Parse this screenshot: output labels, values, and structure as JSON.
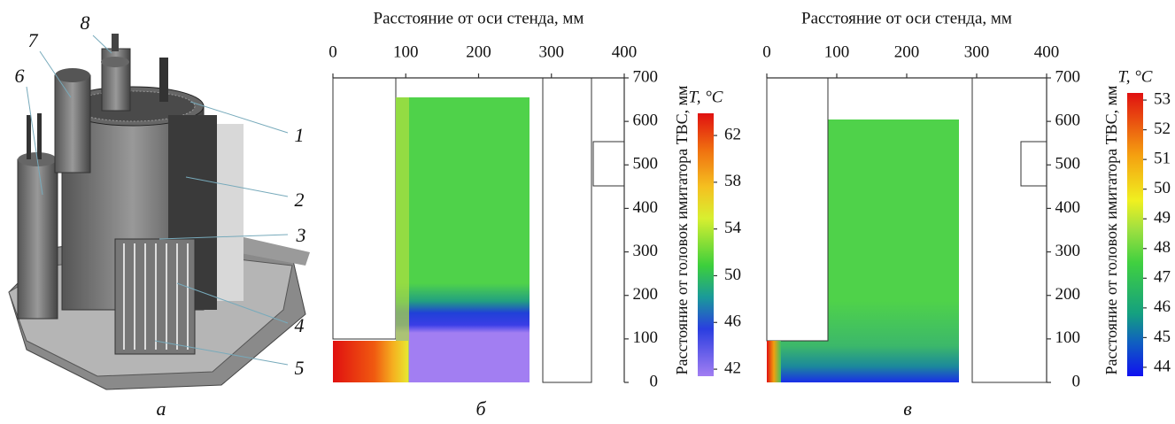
{
  "panel_a": {
    "label": "а",
    "callouts": [
      "1",
      "2",
      "3",
      "4",
      "5",
      "6",
      "7",
      "8"
    ]
  },
  "panel_b": {
    "label": "б",
    "x_axis_label": "Расстояние от оси стенда, мм",
    "y_axis_label": "Расстояние от головок имитатора ТВС, мм",
    "xlim": [
      0,
      400
    ],
    "xticks": [
      0,
      100,
      200,
      300,
      400
    ],
    "ylim": [
      0,
      700
    ],
    "yticks": [
      0,
      100,
      200,
      300,
      400,
      500,
      600,
      700
    ],
    "colorbar_title": "T, °C",
    "colorbar_lim": [
      41.4,
      63.9
    ],
    "colorbar_ticks": [
      42,
      46,
      50,
      54,
      58,
      62
    ]
  },
  "panel_c": {
    "label": "в",
    "x_axis_label": "Расстояние от оси стенда, мм",
    "y_axis_label": "Расстояние от головок имитатора ТВС, мм",
    "xlim": [
      0,
      400
    ],
    "xticks": [
      0,
      100,
      200,
      300,
      400
    ],
    "ylim": [
      0,
      700
    ],
    "yticks": [
      0,
      100,
      200,
      300,
      400,
      500,
      600,
      700
    ],
    "colorbar_title": "T, °C",
    "colorbar_lim": [
      43.7,
      53.24
    ],
    "colorbar_ticks": [
      44,
      45,
      46,
      47,
      48,
      49,
      50,
      51,
      52,
      53
    ]
  }
}
